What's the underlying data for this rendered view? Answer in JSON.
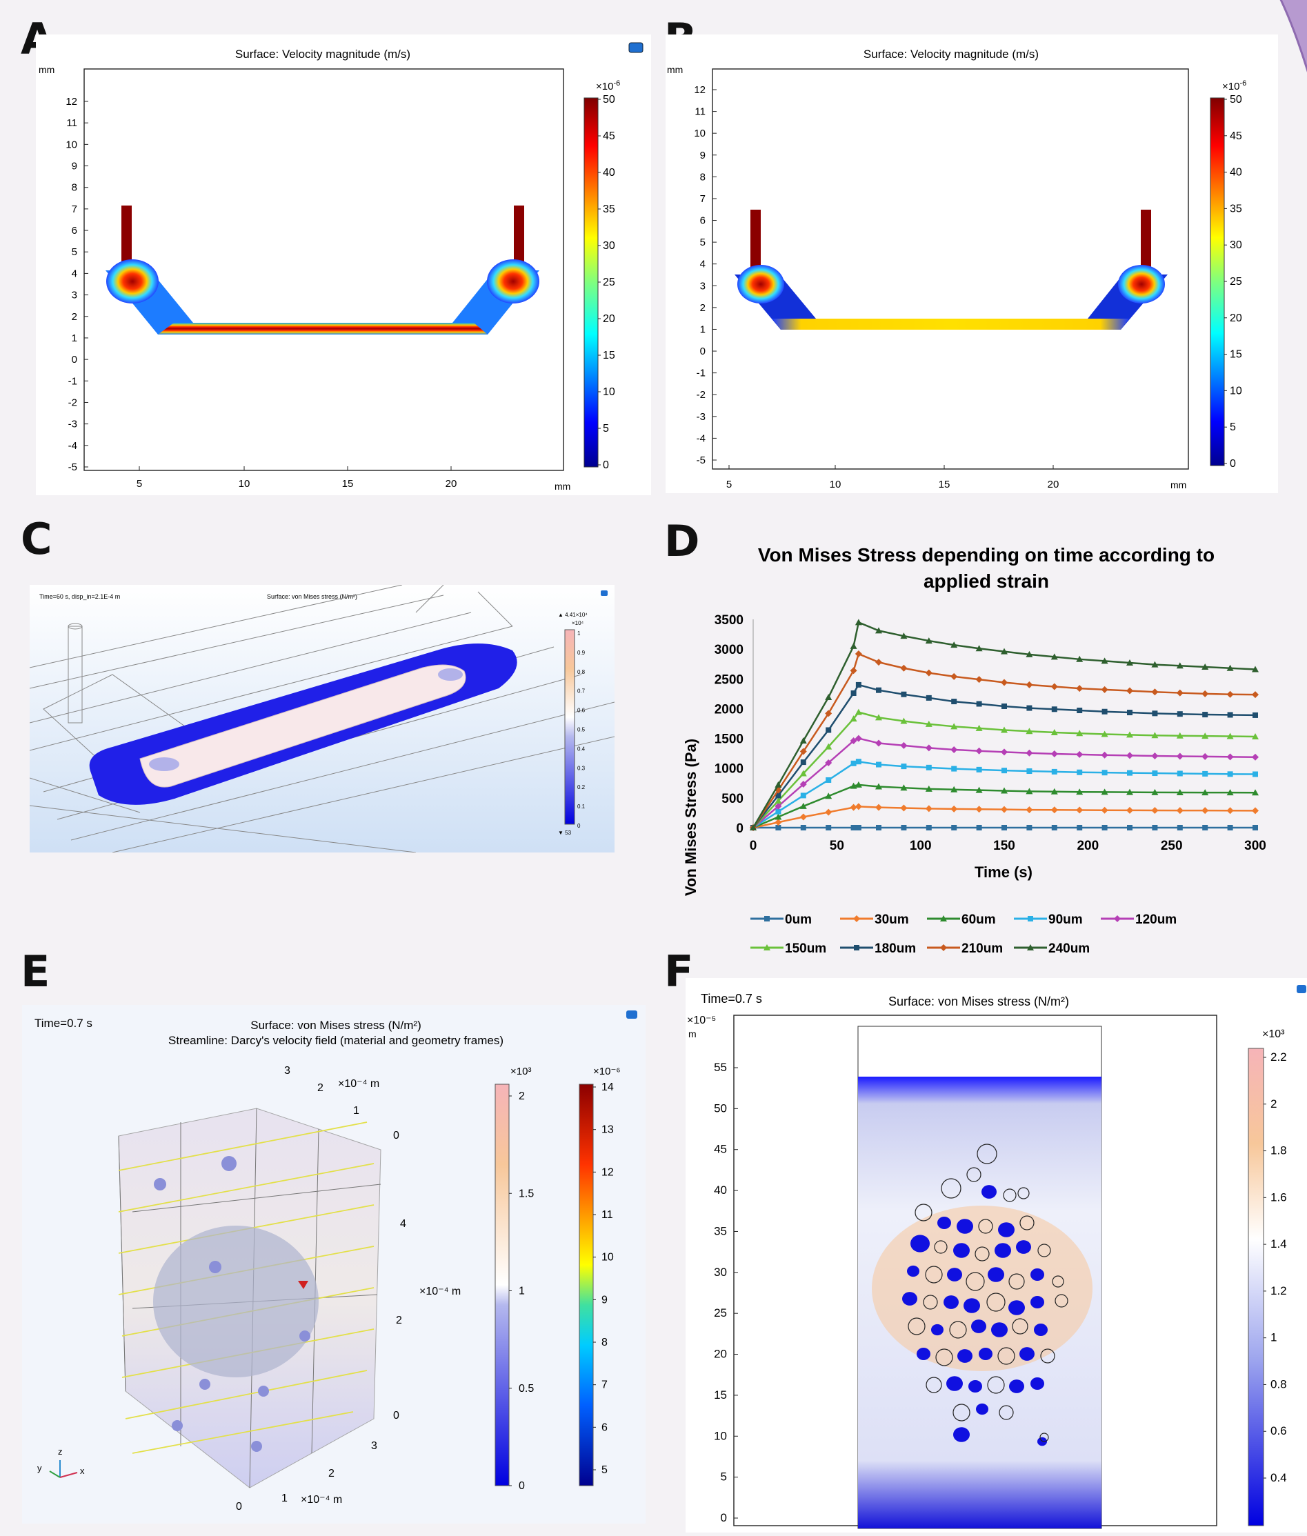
{
  "panels": {
    "A": {
      "letter": "A",
      "title": "Surface: Velocity magnitude (m/s)",
      "y_unit": "mm",
      "x_unit": "mm",
      "y_ticks": [
        "12",
        "11",
        "10",
        "9",
        "8",
        "7",
        "6",
        "5",
        "4",
        "3",
        "2",
        "1",
        "0",
        "-1",
        "-2",
        "-3",
        "-4",
        "-5"
      ],
      "x_ticks": [
        "5",
        "10",
        "15",
        "20"
      ],
      "colorbar_exp": "×10",
      "colorbar_exp_power": "-6",
      "colorbar_ticks": [
        "50",
        "45",
        "40",
        "35",
        "30",
        "25",
        "20",
        "15",
        "10",
        "5",
        "0"
      ]
    },
    "B": {
      "letter": "B",
      "title": "Surface: Velocity magnitude (m/s)",
      "y_unit": "mm",
      "x_unit": "mm",
      "y_ticks": [
        "12",
        "11",
        "10",
        "9",
        "8",
        "7",
        "6",
        "5",
        "4",
        "3",
        "2",
        "1",
        "0",
        "-1",
        "-2",
        "-3",
        "-4",
        "-5"
      ],
      "x_ticks": [
        "5",
        "10",
        "15",
        "20"
      ],
      "colorbar_exp": "×10",
      "colorbar_exp_power": "-6",
      "colorbar_ticks": [
        "50",
        "45",
        "40",
        "35",
        "30",
        "25",
        "20",
        "15",
        "10",
        "5",
        "0"
      ]
    },
    "C": {
      "letter": "C",
      "time_label": "Time=60 s, disp_in=2.1E-4 m",
      "title": "Surface: von Mises stress (N/m²)",
      "max_label": "▲ 4.41×10⁴",
      "min_label": "▼ 53",
      "colorbar_exp": "×10⁴",
      "colorbar_ticks": [
        "1",
        "0.9",
        "0.8",
        "0.7",
        "0.6",
        "0.5",
        "0.4",
        "0.3",
        "0.2",
        "0.1",
        "0"
      ]
    },
    "D": {
      "letter": "D",
      "title_line1": "Von Mises Stress depending on time according to",
      "title_line2": "applied strain",
      "ylabel": "Von Mises Stress (Pa)",
      "xlabel": "Time (s)"
    },
    "E": {
      "letter": "E",
      "time_label": "Time=0.7 s",
      "title_line1": "Surface: von Mises stress (N/m²)",
      "title_line2": "Streamline: Darcy's velocity field (material and geometry frames)",
      "axis_ticks_top": [
        "3",
        "2",
        "1",
        "0"
      ],
      "axis_ticks_side": [
        "4",
        "2",
        "0"
      ],
      "axis_ticks_bottom": [
        "3",
        "2",
        "1",
        "0"
      ],
      "axis_unit": "×10⁻⁴ m",
      "cb1_exp": "×10³",
      "cb1_ticks": [
        "2",
        "1.5",
        "1",
        "0.5",
        "0"
      ],
      "cb2_exp": "×10⁻⁶",
      "cb2_ticks": [
        "14",
        "13",
        "12",
        "11",
        "10",
        "9",
        "8",
        "7",
        "6",
        "5"
      ],
      "triad": {
        "x": "x",
        "y": "y",
        "z": "z"
      }
    },
    "F": {
      "letter": "F",
      "time_label": "Time=0.7 s",
      "title": "Surface: von Mises stress (N/m²)",
      "y_exp": "×10⁻⁵",
      "y_unit": "m",
      "y_ticks": [
        "55",
        "50",
        "45",
        "40",
        "35",
        "30",
        "25",
        "20",
        "15",
        "10",
        "5",
        "0"
      ],
      "colorbar_exp": "×10³",
      "colorbar_ticks": [
        "2.2",
        "2",
        "1.8",
        "1.6",
        "1.4",
        "1.2",
        "1",
        "0.8",
        "0.6",
        "0.4"
      ]
    }
  },
  "chart_data": [
    {
      "type": "line",
      "title": "Von Mises Stress depending on time according to applied strain",
      "xlabel": "Time (s)",
      "ylabel": "Von Mises Stress (Pa)",
      "xlim": [
        0,
        300
      ],
      "ylim": [
        0,
        3500
      ],
      "x_ticks": [
        0,
        50,
        100,
        150,
        200,
        250,
        300
      ],
      "y_ticks": [
        0,
        500,
        1000,
        1500,
        2000,
        2500,
        3000,
        3500
      ],
      "legend_position": "bottom",
      "x": [
        0,
        15,
        30,
        45,
        60,
        63,
        75,
        90,
        105,
        120,
        135,
        150,
        165,
        180,
        195,
        210,
        225,
        240,
        255,
        270,
        285,
        300
      ],
      "series": [
        {
          "name": "0um",
          "color": "#2e6f9e",
          "marker": "square",
          "values": [
            0,
            0,
            0,
            0,
            0,
            0,
            0,
            0,
            0,
            0,
            0,
            0,
            0,
            0,
            0,
            0,
            0,
            0,
            0,
            0,
            0,
            0
          ]
        },
        {
          "name": "30um",
          "color": "#f07b2c",
          "marker": "diamond",
          "values": [
            0,
            90,
            180,
            260,
            340,
            355,
            340,
            330,
            320,
            315,
            310,
            305,
            300,
            298,
            295,
            293,
            291,
            290,
            289,
            288,
            287,
            286
          ]
        },
        {
          "name": "60um",
          "color": "#2e8b2e",
          "marker": "triangle",
          "values": [
            0,
            180,
            360,
            530,
            700,
            720,
            690,
            670,
            650,
            640,
            630,
            620,
            610,
            605,
            600,
            598,
            595,
            593,
            591,
            590,
            589,
            588
          ]
        },
        {
          "name": "90um",
          "color": "#2ab0e6",
          "marker": "square",
          "values": [
            0,
            270,
            540,
            800,
            1080,
            1110,
            1060,
            1030,
            1010,
            990,
            975,
            960,
            950,
            940,
            930,
            925,
            920,
            915,
            910,
            905,
            900,
            898
          ]
        },
        {
          "name": "120um",
          "color": "#b53fb5",
          "marker": "diamond",
          "values": [
            0,
            360,
            730,
            1090,
            1460,
            1500,
            1420,
            1380,
            1340,
            1310,
            1290,
            1270,
            1255,
            1240,
            1230,
            1220,
            1212,
            1205,
            1200,
            1195,
            1190,
            1185
          ]
        },
        {
          "name": "150um",
          "color": "#6ac13a",
          "marker": "triangle",
          "values": [
            0,
            450,
            910,
            1360,
            1830,
            1940,
            1850,
            1790,
            1740,
            1700,
            1670,
            1640,
            1620,
            1600,
            1585,
            1570,
            1560,
            1550,
            1545,
            1540,
            1535,
            1530
          ]
        },
        {
          "name": "180um",
          "color": "#1f4e6e",
          "marker": "square",
          "values": [
            0,
            540,
            1100,
            1640,
            2260,
            2400,
            2310,
            2240,
            2180,
            2120,
            2080,
            2040,
            2010,
            1990,
            1970,
            1950,
            1935,
            1920,
            1910,
            1900,
            1895,
            1890
          ]
        },
        {
          "name": "210um",
          "color": "#c85a1e",
          "marker": "diamond",
          "values": [
            0,
            630,
            1280,
            1920,
            2640,
            2920,
            2780,
            2680,
            2600,
            2540,
            2490,
            2440,
            2400,
            2370,
            2340,
            2320,
            2300,
            2280,
            2265,
            2250,
            2240,
            2235
          ]
        },
        {
          "name": "240um",
          "color": "#2e5f2e",
          "marker": "triangle",
          "values": [
            0,
            720,
            1460,
            2190,
            3050,
            3450,
            3310,
            3220,
            3140,
            3070,
            3010,
            2960,
            2910,
            2870,
            2830,
            2800,
            2770,
            2740,
            2720,
            2700,
            2680,
            2660
          ]
        }
      ]
    }
  ]
}
